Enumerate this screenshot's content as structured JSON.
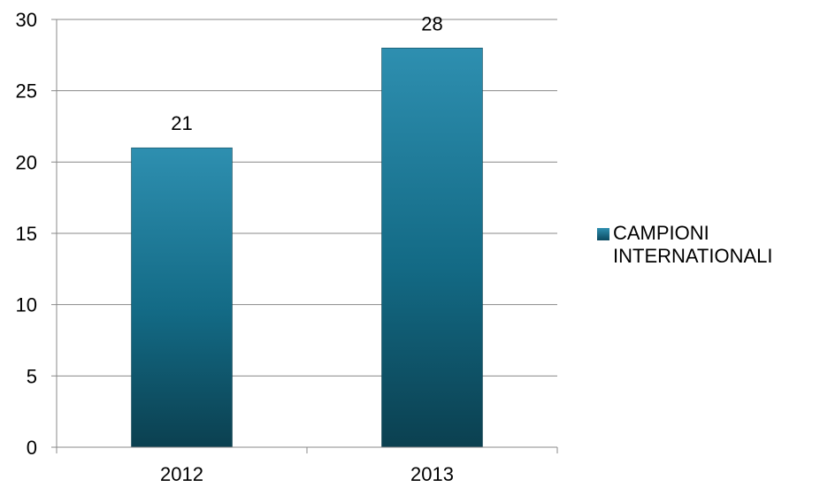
{
  "chart_data": {
    "type": "bar",
    "categories": [
      "2012",
      "2013"
    ],
    "series": [
      {
        "name": "CAMPIONI INTERNATIONALI",
        "values": [
          21,
          28
        ]
      }
    ],
    "data_labels": [
      "21",
      "28"
    ],
    "ylim": [
      0,
      30
    ],
    "yticks": [
      "0",
      "5",
      "10",
      "15",
      "20",
      "25",
      "30"
    ],
    "ytick_values": [
      0,
      5,
      10,
      15,
      20,
      25,
      30
    ],
    "grid": true,
    "legend_position": "right",
    "title": "",
    "xlabel": "",
    "ylabel": "",
    "colors": {
      "bar_top": "#2e8fb0",
      "bar_bottom": "#0b4050",
      "grid": "#888888"
    }
  }
}
